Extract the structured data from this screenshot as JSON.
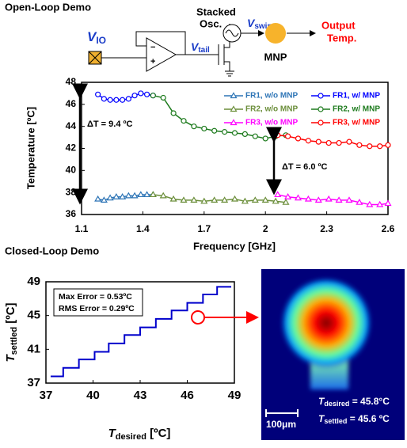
{
  "open_loop_title": "Open-Loop Demo",
  "closed_loop_title": "Closed-Loop Demo",
  "diagram": {
    "vio": {
      "symbol": "V",
      "subscript": "IO"
    },
    "osc": [
      "Stacked",
      "Osc."
    ],
    "vswing": {
      "symbol": "V",
      "subscript": "swing"
    },
    "vtail": {
      "symbol": "V",
      "subscript": "tail"
    },
    "mnp": "MNP",
    "output": [
      "Output",
      "Temp."
    ]
  },
  "thermal_image": {
    "scale_bar": "100μm",
    "t_desired": {
      "symbol": "T",
      "subscript": "desired",
      "text": " = 45.8°C"
    },
    "t_settled": {
      "symbol": "T",
      "subscript": "settled",
      "text": " = 45.6 ºC"
    }
  },
  "chart_data": [
    {
      "type": "line",
      "xlabel": "Frequency [GHz]",
      "ylabel": "Temperature [ºC]",
      "xlim": [
        1.1,
        2.6
      ],
      "xticks": [
        1.1,
        1.4,
        1.7,
        2,
        2.3,
        2.6
      ],
      "ylim": [
        36,
        48
      ],
      "yticks": [
        36,
        38,
        40,
        42,
        44,
        46,
        48
      ],
      "annotations": [
        "ΔT = 9.4 ºC",
        "ΔT = 6.0 ºC"
      ],
      "series": [
        {
          "name": "FR1, w/o MNP",
          "color": "#2e75b6",
          "marker": "triangle",
          "x": [
            1.18,
            1.21,
            1.24,
            1.27,
            1.3,
            1.33,
            1.36,
            1.39,
            1.42,
            1.45
          ],
          "values": [
            37.4,
            37.3,
            37.5,
            37.6,
            37.6,
            37.7,
            37.7,
            37.8,
            37.8,
            37.8
          ]
        },
        {
          "name": "FR1, w/ MNP",
          "color": "#0000ff",
          "marker": "circle",
          "x": [
            1.18,
            1.21,
            1.24,
            1.27,
            1.3,
            1.33,
            1.36,
            1.39,
            1.42,
            1.45
          ],
          "values": [
            46.9,
            46.5,
            46.4,
            46.4,
            46.4,
            46.5,
            46.8,
            47.0,
            46.9,
            46.8
          ]
        },
        {
          "name": "FR2, w/o MNP",
          "color": "#6b8e3a",
          "marker": "triangle",
          "x": [
            1.45,
            1.5,
            1.55,
            1.6,
            1.65,
            1.7,
            1.75,
            1.8,
            1.85,
            1.9,
            1.95,
            2.0,
            2.05,
            2.1
          ],
          "values": [
            37.8,
            37.7,
            37.4,
            37.3,
            37.3,
            37.2,
            37.3,
            37.3,
            37.4,
            37.2,
            37.3,
            37.3,
            37.2,
            37.1
          ]
        },
        {
          "name": "FR2, w/ MNP",
          "color": "#1e7b1e",
          "marker": "circle",
          "x": [
            1.45,
            1.5,
            1.55,
            1.6,
            1.65,
            1.7,
            1.75,
            1.8,
            1.85,
            1.9,
            1.95,
            2.0,
            2.05,
            2.1
          ],
          "values": [
            46.8,
            46.6,
            45.2,
            44.5,
            44.0,
            43.8,
            43.6,
            43.5,
            43.4,
            43.3,
            43.1,
            42.9,
            43.1,
            43.2
          ]
        },
        {
          "name": "FR3, w/o MNP",
          "color": "#ff00ff",
          "marker": "triangle",
          "x": [
            2.06,
            2.11,
            2.16,
            2.21,
            2.26,
            2.31,
            2.36,
            2.41,
            2.46,
            2.51,
            2.56,
            2.6
          ],
          "values": [
            37.8,
            37.6,
            37.5,
            37.4,
            37.3,
            37.4,
            37.3,
            37.3,
            37.1,
            36.9,
            36.9,
            37.0
          ]
        },
        {
          "name": "FR3, w/ MNP",
          "color": "#ff0000",
          "marker": "circle",
          "x": [
            2.06,
            2.11,
            2.16,
            2.21,
            2.26,
            2.31,
            2.36,
            2.41,
            2.46,
            2.51,
            2.56,
            2.6
          ],
          "values": [
            43.2,
            43.1,
            42.9,
            42.7,
            42.6,
            42.5,
            42.5,
            42.6,
            42.3,
            42.2,
            42.2,
            42.3
          ]
        }
      ]
    },
    {
      "type": "step",
      "xlabel": {
        "symbol": "T",
        "subscript": "desired",
        "unit": " [ºC]"
      },
      "ylabel": {
        "symbol": "T",
        "subscript": "settled",
        "unit": " [ºC]"
      },
      "xlim": [
        37,
        49
      ],
      "xticks": [
        37,
        40,
        43,
        46,
        49
      ],
      "ylim": [
        37,
        49
      ],
      "yticks": [
        37,
        41,
        45,
        49
      ],
      "annotations": [
        "Max Error = 0.53ºC",
        "RMS Error = 0.29ºC"
      ],
      "series": [
        {
          "color": "#0000cc",
          "x": [
            37.3,
            38.1,
            39.1,
            40.1,
            41.0,
            42.0,
            43.0,
            44.0,
            45.0,
            46.0,
            47.0,
            47.9,
            48.8
          ],
          "values": [
            37.8,
            38.8,
            39.8,
            40.7,
            41.7,
            42.7,
            43.6,
            44.6,
            45.6,
            46.5,
            47.5,
            48.4,
            48.4
          ]
        }
      ]
    }
  ]
}
